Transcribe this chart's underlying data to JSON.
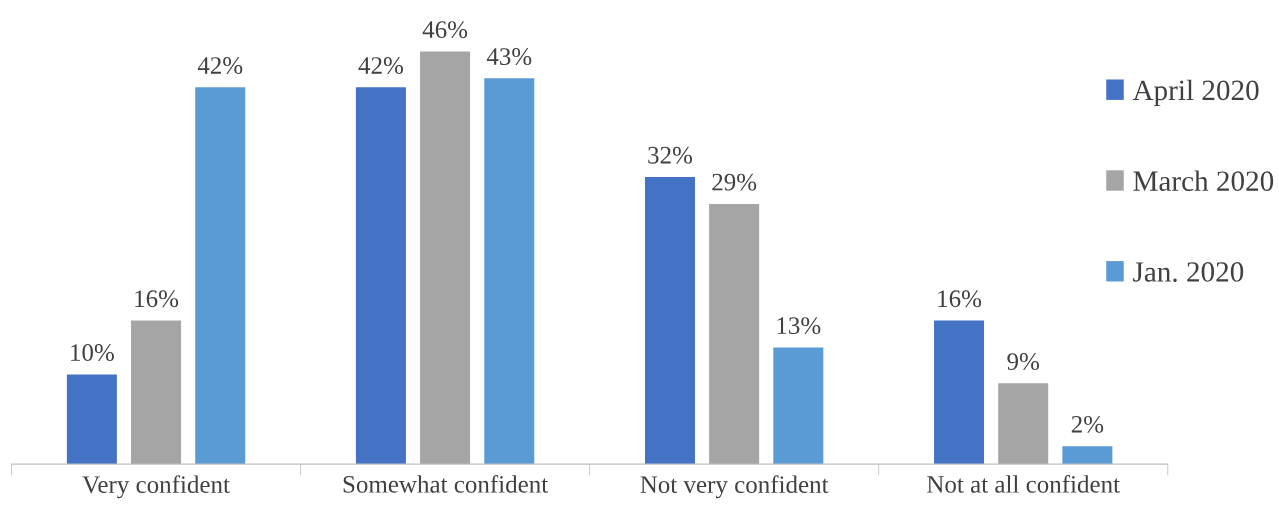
{
  "chart_data": {
    "type": "bar",
    "categories": [
      "Very confident",
      "Somewhat confident",
      "Not very confident",
      "Not at all confident"
    ],
    "series": [
      {
        "name": "April 2020",
        "color": "#4472c4",
        "values": [
          10,
          42,
          32,
          16
        ],
        "value_labels": [
          "10%",
          "42%",
          "32%",
          "16%"
        ]
      },
      {
        "name": "March 2020",
        "color": "#a5a5a5",
        "values": [
          16,
          46,
          29,
          9
        ],
        "value_labels": [
          "16%",
          "46%",
          "29%",
          "9%"
        ]
      },
      {
        "name": "Jan. 2020",
        "color": "#5b9bd5",
        "values": [
          42,
          43,
          13,
          2
        ],
        "value_labels": [
          "42%",
          "43%",
          "13%",
          "2%"
        ]
      }
    ],
    "legend": "right"
  }
}
